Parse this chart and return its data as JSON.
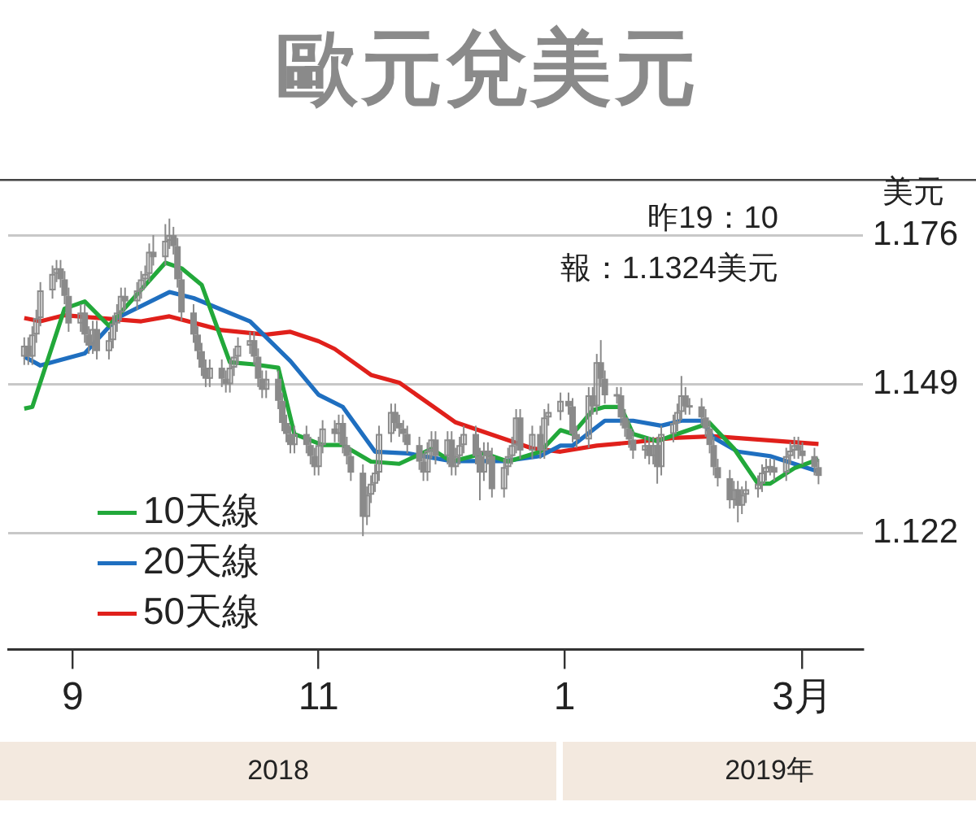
{
  "chart_data": {
    "type": "candlestick",
    "title": "歐元兌美元",
    "ylabel": "美元",
    "color": "#8a8a8a",
    "annotations": [
      "昨19：10",
      "報：1.1324美元",
      "2018",
      "2019年"
    ],
    "xlim": [
      "2018-08-16",
      "2019-03-16"
    ],
    "xticks": [
      {
        "value": "2018-09-01",
        "label": "9"
      },
      {
        "value": "2018-11-01",
        "label": "11"
      },
      {
        "value": "2019-01-01",
        "label": "1"
      },
      {
        "value": "2019-03-01",
        "label": "3月"
      }
    ],
    "ylim": [
      1.101,
      1.186
    ],
    "yticks": [
      1.122,
      1.149,
      1.176
    ],
    "grid": "y",
    "legend": "bottom left",
    "x": [
      "2018-08-20",
      "2018-08-21",
      "2018-08-22",
      "2018-08-23",
      "2018-08-24",
      "2018-08-27",
      "2018-08-28",
      "2018-08-29",
      "2018-08-30",
      "2018-08-31",
      "2018-09-03",
      "2018-09-04",
      "2018-09-05",
      "2018-09-06",
      "2018-09-07",
      "2018-09-10",
      "2018-09-11",
      "2018-09-12",
      "2018-09-13",
      "2018-09-14",
      "2018-09-17",
      "2018-09-18",
      "2018-09-19",
      "2018-09-20",
      "2018-09-21",
      "2018-09-24",
      "2018-09-25",
      "2018-09-26",
      "2018-09-27",
      "2018-09-28",
      "2018-10-01",
      "2018-10-02",
      "2018-10-03",
      "2018-10-04",
      "2018-10-05",
      "2018-10-08",
      "2018-10-09",
      "2018-10-10",
      "2018-10-11",
      "2018-10-12",
      "2018-10-15",
      "2018-10-16",
      "2018-10-17",
      "2018-10-18",
      "2018-10-19",
      "2018-10-22",
      "2018-10-23",
      "2018-10-24",
      "2018-10-25",
      "2018-10-26",
      "2018-10-29",
      "2018-10-30",
      "2018-10-31",
      "2018-11-01",
      "2018-11-02",
      "2018-11-05",
      "2018-11-06",
      "2018-11-07",
      "2018-11-08",
      "2018-11-09",
      "2018-11-12",
      "2018-11-13",
      "2018-11-14",
      "2018-11-15",
      "2018-11-16",
      "2018-11-19",
      "2018-11-20",
      "2018-11-21",
      "2018-11-22",
      "2018-11-23",
      "2018-11-26",
      "2018-11-27",
      "2018-11-28",
      "2018-11-29",
      "2018-11-30",
      "2018-12-03",
      "2018-12-04",
      "2018-12-05",
      "2018-12-06",
      "2018-12-07",
      "2018-12-10",
      "2018-12-11",
      "2018-12-12",
      "2018-12-13",
      "2018-12-14",
      "2018-12-17",
      "2018-12-18",
      "2018-12-19",
      "2018-12-20",
      "2018-12-21",
      "2018-12-24",
      "2018-12-26",
      "2018-12-27",
      "2018-12-28",
      "2018-12-31",
      "2019-01-02",
      "2019-01-03",
      "2019-01-04",
      "2019-01-07",
      "2019-01-08",
      "2019-01-09",
      "2019-01-10",
      "2019-01-11",
      "2019-01-14",
      "2019-01-15",
      "2019-01-16",
      "2019-01-17",
      "2019-01-18",
      "2019-01-21",
      "2019-01-22",
      "2019-01-23",
      "2019-01-24",
      "2019-01-25",
      "2019-01-28",
      "2019-01-29",
      "2019-01-30",
      "2019-01-31",
      "2019-02-01",
      "2019-02-04",
      "2019-02-05",
      "2019-02-06",
      "2019-02-07",
      "2019-02-08",
      "2019-02-11",
      "2019-02-12",
      "2019-02-13",
      "2019-02-14",
      "2019-02-15",
      "2019-02-18",
      "2019-02-19",
      "2019-02-20",
      "2019-02-21",
      "2019-02-22",
      "2019-02-25",
      "2019-02-26",
      "2019-02-27",
      "2019-02-28",
      "2019-03-01",
      "2019-03-04",
      "2019-03-05"
    ],
    "ohlc": [
      [
        1.154,
        1.1575,
        1.1525,
        1.156
      ],
      [
        1.156,
        1.1575,
        1.1525,
        1.154
      ],
      [
        1.154,
        1.1595,
        1.1525,
        1.158
      ],
      [
        1.158,
        1.1625,
        1.1565,
        1.161
      ],
      [
        1.161,
        1.1675,
        1.1595,
        1.166
      ],
      [
        1.166,
        1.1705,
        1.1645,
        1.169
      ],
      [
        1.169,
        1.1715,
        1.1675,
        1.17
      ],
      [
        1.17,
        1.1715,
        1.1665,
        1.168
      ],
      [
        1.168,
        1.1695,
        1.1635,
        1.165
      ],
      [
        1.165,
        1.1665,
        1.1585,
        1.16
      ],
      [
        1.16,
        1.1635,
        1.1585,
        1.162
      ],
      [
        1.162,
        1.1635,
        1.1565,
        1.158
      ],
      [
        1.158,
        1.1595,
        1.1545,
        1.156
      ],
      [
        1.156,
        1.1605,
        1.1545,
        1.159
      ],
      [
        1.159,
        1.1605,
        1.1535,
        1.155
      ],
      [
        1.155,
        1.1585,
        1.1535,
        1.157
      ],
      [
        1.157,
        1.1615,
        1.1555,
        1.16
      ],
      [
        1.16,
        1.1635,
        1.1585,
        1.162
      ],
      [
        1.162,
        1.1665,
        1.1605,
        1.165
      ],
      [
        1.165,
        1.1665,
        1.1625,
        1.164
      ],
      [
        1.164,
        1.1675,
        1.1625,
        1.166
      ],
      [
        1.166,
        1.1695,
        1.1645,
        1.168
      ],
      [
        1.168,
        1.1705,
        1.1665,
        1.169
      ],
      [
        1.169,
        1.1745,
        1.1675,
        1.173
      ],
      [
        1.173,
        1.176,
        1.1705,
        1.172
      ],
      [
        1.172,
        1.178,
        1.1705,
        1.175
      ],
      [
        1.175,
        1.179,
        1.1735,
        1.176
      ],
      [
        1.176,
        1.1775,
        1.1725,
        1.174
      ],
      [
        1.174,
        1.1755,
        1.1665,
        1.168
      ],
      [
        1.168,
        1.1695,
        1.1605,
        1.162
      ],
      [
        1.162,
        1.1635,
        1.1565,
        1.158
      ],
      [
        1.158,
        1.1595,
        1.1535,
        1.155
      ],
      [
        1.155,
        1.1565,
        1.1505,
        1.152
      ],
      [
        1.152,
        1.1535,
        1.1485,
        1.15
      ],
      [
        1.15,
        1.1535,
        1.1485,
        1.152
      ],
      [
        1.152,
        1.1535,
        1.1485,
        1.15
      ],
      [
        1.15,
        1.1515,
        1.1475,
        1.149
      ],
      [
        1.149,
        1.1535,
        1.1475,
        1.152
      ],
      [
        1.152,
        1.1555,
        1.1505,
        1.154
      ],
      [
        1.154,
        1.1575,
        1.1525,
        1.156
      ],
      [
        1.156,
        1.1585,
        1.1545,
        1.157
      ],
      [
        1.157,
        1.1585,
        1.1525,
        1.154
      ],
      [
        1.154,
        1.1555,
        1.1485,
        1.15
      ],
      [
        1.15,
        1.1515,
        1.1465,
        1.148
      ],
      [
        1.148,
        1.1515,
        1.1465,
        1.15
      ],
      [
        1.15,
        1.1515,
        1.1445,
        1.146
      ],
      [
        1.146,
        1.1475,
        1.1405,
        1.142
      ],
      [
        1.142,
        1.1435,
        1.1385,
        1.14
      ],
      [
        1.14,
        1.1415,
        1.1365,
        1.138
      ],
      [
        1.138,
        1.1415,
        1.1365,
        1.14
      ],
      [
        1.14,
        1.1415,
        1.1365,
        1.138
      ],
      [
        1.138,
        1.1395,
        1.1345,
        1.136
      ],
      [
        1.136,
        1.1375,
        1.1325,
        1.134
      ],
      [
        1.134,
        1.1395,
        1.1325,
        1.138
      ],
      [
        1.138,
        1.1425,
        1.1365,
        1.141
      ],
      [
        1.141,
        1.1425,
        1.1385,
        1.14
      ],
      [
        1.14,
        1.1435,
        1.1385,
        1.142
      ],
      [
        1.142,
        1.1435,
        1.1365,
        1.138
      ],
      [
        1.138,
        1.1395,
        1.1345,
        1.136
      ],
      [
        1.136,
        1.1375,
        1.1315,
        1.133
      ],
      [
        1.133,
        1.1345,
        1.1215,
        1.125
      ],
      [
        1.125,
        1.1305,
        1.1235,
        1.129
      ],
      [
        1.129,
        1.1325,
        1.1275,
        1.131
      ],
      [
        1.131,
        1.1345,
        1.1295,
        1.133
      ],
      [
        1.133,
        1.1415,
        1.1315,
        1.14
      ],
      [
        1.14,
        1.1455,
        1.1385,
        1.144
      ],
      [
        1.144,
        1.1455,
        1.1405,
        1.142
      ],
      [
        1.142,
        1.1435,
        1.1395,
        1.141
      ],
      [
        1.141,
        1.1425,
        1.1385,
        1.14
      ],
      [
        1.14,
        1.1415,
        1.1365,
        1.138
      ],
      [
        1.138,
        1.1395,
        1.1335,
        1.135
      ],
      [
        1.135,
        1.1365,
        1.1315,
        1.133
      ],
      [
        1.133,
        1.1385,
        1.1315,
        1.137
      ],
      [
        1.137,
        1.1405,
        1.1355,
        1.139
      ],
      [
        1.139,
        1.1405,
        1.1345,
        1.136
      ],
      [
        1.136,
        1.1405,
        1.1345,
        1.139
      ],
      [
        1.139,
        1.1405,
        1.1325,
        1.134
      ],
      [
        1.134,
        1.1375,
        1.1325,
        1.136
      ],
      [
        1.136,
        1.1395,
        1.1345,
        1.138
      ],
      [
        1.138,
        1.1415,
        1.1365,
        1.14
      ],
      [
        1.14,
        1.1415,
        1.1345,
        1.136
      ],
      [
        1.136,
        1.1375,
        1.128,
        1.133
      ],
      [
        1.133,
        1.1385,
        1.1315,
        1.137
      ],
      [
        1.137,
        1.1385,
        1.1345,
        1.136
      ],
      [
        1.136,
        1.1375,
        1.1285,
        1.13
      ],
      [
        1.13,
        1.1355,
        1.1285,
        1.134
      ],
      [
        1.134,
        1.1375,
        1.1325,
        1.136
      ],
      [
        1.136,
        1.1395,
        1.1345,
        1.138
      ],
      [
        1.138,
        1.1445,
        1.1365,
        1.143
      ],
      [
        1.143,
        1.1445,
        1.1355,
        1.137
      ],
      [
        1.137,
        1.1415,
        1.1355,
        1.14
      ],
      [
        1.14,
        1.1415,
        1.1355,
        1.137
      ],
      [
        1.137,
        1.1445,
        1.1355,
        1.143
      ],
      [
        1.143,
        1.1455,
        1.1415,
        1.144
      ],
      [
        1.144,
        1.1475,
        1.1425,
        1.146
      ],
      [
        1.146,
        1.1475,
        1.1435,
        1.145
      ],
      [
        1.145,
        1.1465,
        1.1385,
        1.14
      ],
      [
        1.14,
        1.1415,
        1.1375,
        1.139
      ],
      [
        1.139,
        1.1485,
        1.1375,
        1.147
      ],
      [
        1.147,
        1.1485,
        1.1435,
        1.145
      ],
      [
        1.145,
        1.1545,
        1.1435,
        1.153
      ],
      [
        1.153,
        1.157,
        1.1485,
        1.15
      ],
      [
        1.15,
        1.1515,
        1.1455,
        1.147
      ],
      [
        1.147,
        1.1485,
        1.1455,
        1.147
      ],
      [
        1.147,
        1.1485,
        1.1415,
        1.143
      ],
      [
        1.143,
        1.1445,
        1.1395,
        1.141
      ],
      [
        1.141,
        1.1425,
        1.1375,
        1.139
      ],
      [
        1.139,
        1.1405,
        1.1355,
        1.137
      ],
      [
        1.137,
        1.1395,
        1.1355,
        1.138
      ],
      [
        1.138,
        1.1395,
        1.1345,
        1.136
      ],
      [
        1.136,
        1.1395,
        1.1345,
        1.138
      ],
      [
        1.138,
        1.1395,
        1.131,
        1.134
      ],
      [
        1.134,
        1.1415,
        1.1325,
        1.14
      ],
      [
        1.14,
        1.1435,
        1.1385,
        1.142
      ],
      [
        1.142,
        1.1455,
        1.1405,
        1.144
      ],
      [
        1.144,
        1.1505,
        1.1425,
        1.147
      ],
      [
        1.147,
        1.1485,
        1.1435,
        1.145
      ],
      [
        1.145,
        1.1465,
        1.1435,
        1.145
      ],
      [
        1.145,
        1.1465,
        1.1415,
        1.143
      ],
      [
        1.143,
        1.1445,
        1.1395,
        1.141
      ],
      [
        1.141,
        1.1425,
        1.1365,
        1.138
      ],
      [
        1.138,
        1.1395,
        1.1325,
        1.134
      ],
      [
        1.134,
        1.1355,
        1.1305,
        1.132
      ],
      [
        1.132,
        1.1335,
        1.1265,
        1.128
      ],
      [
        1.128,
        1.1315,
        1.1265,
        1.13
      ],
      [
        1.13,
        1.1315,
        1.124,
        1.127
      ],
      [
        1.127,
        1.1305,
        1.1255,
        1.129
      ],
      [
        1.129,
        1.1315,
        1.1275,
        1.13
      ],
      [
        1.13,
        1.1325,
        1.1285,
        1.131
      ],
      [
        1.131,
        1.1345,
        1.1295,
        1.133
      ],
      [
        1.133,
        1.1355,
        1.1315,
        1.134
      ],
      [
        1.134,
        1.1355,
        1.1325,
        1.134
      ],
      [
        1.134,
        1.1355,
        1.1315,
        1.133
      ],
      [
        1.133,
        1.1375,
        1.1315,
        1.136
      ],
      [
        1.136,
        1.1385,
        1.1345,
        1.137
      ],
      [
        1.137,
        1.1395,
        1.1355,
        1.138
      ],
      [
        1.138,
        1.1395,
        1.1355,
        1.137
      ],
      [
        1.137,
        1.1385,
        1.1345,
        1.136
      ],
      [
        1.136,
        1.1375,
        1.1325,
        1.134
      ],
      [
        1.134,
        1.1355,
        1.1309,
        1.1324
      ]
    ],
    "series": [
      {
        "name": "10天線",
        "type": "line",
        "color": "#22a83a",
        "x": [
          "2018-08-20",
          "2018-08-22",
          "2018-08-30",
          "2018-09-04",
          "2018-09-10",
          "2018-09-24",
          "2018-09-28",
          "2018-10-03",
          "2018-10-10",
          "2018-10-16",
          "2018-10-22",
          "2018-10-26",
          "2018-11-02",
          "2018-11-07",
          "2018-11-14",
          "2018-11-21",
          "2018-11-29",
          "2018-12-04",
          "2018-12-12",
          "2018-12-18",
          "2018-12-26",
          "2018-12-31",
          "2019-01-03",
          "2019-01-08",
          "2019-01-11",
          "2019-01-15",
          "2019-01-18",
          "2019-01-24",
          "2019-01-29",
          "2019-02-06",
          "2019-02-12",
          "2019-02-18",
          "2019-02-21",
          "2019-02-27",
          "2019-03-05"
        ],
        "values": [
          1.1446,
          1.1449,
          1.1627,
          1.164,
          1.1596,
          1.171,
          1.17,
          1.167,
          1.153,
          1.1526,
          1.152,
          1.14,
          1.138,
          1.138,
          1.135,
          1.1346,
          1.1373,
          1.135,
          1.1365,
          1.135,
          1.1368,
          1.1407,
          1.14,
          1.1443,
          1.1449,
          1.1449,
          1.14,
          1.1387,
          1.14,
          1.142,
          1.1374,
          1.131,
          1.131,
          1.1338,
          1.1354
        ]
      },
      {
        "name": "20天線",
        "type": "line",
        "color": "#1f6fc0",
        "x": [
          "2018-08-20",
          "2018-08-24",
          "2018-09-04",
          "2018-09-12",
          "2018-09-25",
          "2018-10-01",
          "2018-10-15",
          "2018-10-25",
          "2018-11-01",
          "2018-11-07",
          "2018-11-15",
          "2018-11-23",
          "2018-12-04",
          "2018-12-17",
          "2018-12-26",
          "2018-12-31",
          "2019-01-03",
          "2019-01-11",
          "2019-01-18",
          "2019-01-25",
          "2019-01-30",
          "2019-02-04",
          "2019-02-07",
          "2019-02-13",
          "2019-02-21",
          "2019-03-05"
        ],
        "values": [
          1.154,
          1.1524,
          1.1546,
          1.161,
          1.1657,
          1.1646,
          1.1604,
          1.1532,
          1.1471,
          1.1449,
          1.1368,
          1.1365,
          1.1351,
          1.1351,
          1.136,
          1.1379,
          1.1379,
          1.1424,
          1.1424,
          1.1415,
          1.1424,
          1.1424,
          1.1393,
          1.1368,
          1.136,
          1.1332
        ]
      },
      {
        "name": "50天線",
        "type": "line",
        "color": "#e0201b",
        "x": [
          "2018-08-20",
          "2018-08-24",
          "2018-08-30",
          "2018-09-18",
          "2018-09-25",
          "2018-10-08",
          "2018-10-19",
          "2018-10-25",
          "2018-11-01",
          "2018-11-05",
          "2018-11-14",
          "2018-11-21",
          "2018-12-05",
          "2018-12-24",
          "2018-12-31",
          "2019-01-09",
          "2019-01-18",
          "2019-01-28",
          "2019-02-07",
          "2019-03-05"
        ],
        "values": [
          1.161,
          1.1604,
          1.1615,
          1.1604,
          1.1613,
          1.1588,
          1.158,
          1.1585,
          1.1568,
          1.1554,
          1.1507,
          1.1493,
          1.1421,
          1.1374,
          1.1368,
          1.1379,
          1.1385,
          1.1393,
          1.1396,
          1.1382
        ]
      }
    ]
  }
}
